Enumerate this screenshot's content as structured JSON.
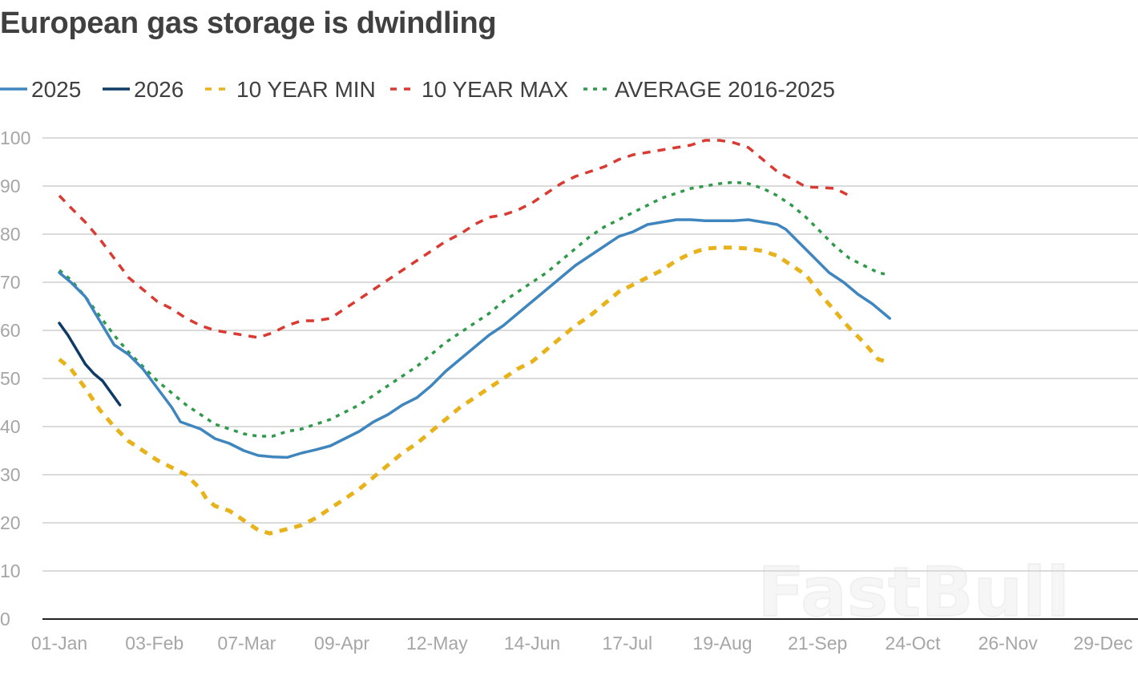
{
  "watermark": "FastBull",
  "chart_data": {
    "type": "line",
    "title": "European gas storage is dwindling",
    "xlabel": "",
    "ylabel": "",
    "ylim": [
      0,
      100
    ],
    "yticks": [
      0,
      10,
      20,
      30,
      40,
      50,
      60,
      70,
      80,
      90,
      100
    ],
    "xlim": [
      1,
      366
    ],
    "xticks": [
      {
        "day": 1,
        "label": "01-Jan"
      },
      {
        "day": 34,
        "label": "03-Feb"
      },
      {
        "day": 66,
        "label": "07-Mar"
      },
      {
        "day": 99,
        "label": "09-Apr"
      },
      {
        "day": 132,
        "label": "12-May"
      },
      {
        "day": 165,
        "label": "14-Jun"
      },
      {
        "day": 198,
        "label": "17-Jul"
      },
      {
        "day": 231,
        "label": "19-Aug"
      },
      {
        "day": 264,
        "label": "21-Sep"
      },
      {
        "day": 297,
        "label": "24-Oct"
      },
      {
        "day": 330,
        "label": "26-Nov"
      },
      {
        "day": 363,
        "label": "29-Dec"
      }
    ],
    "grid": true,
    "legend": "top",
    "series": [
      {
        "name": "2025",
        "color": "#3f86bf",
        "style": "solid",
        "points": [
          [
            1,
            72
          ],
          [
            5,
            70
          ],
          [
            10,
            67
          ],
          [
            15,
            62
          ],
          [
            20,
            57
          ],
          [
            25,
            55
          ],
          [
            30,
            52
          ],
          [
            35,
            48
          ],
          [
            40,
            44
          ],
          [
            43,
            41
          ],
          [
            50,
            39.5
          ],
          [
            55,
            37.5
          ],
          [
            60,
            36.5
          ],
          [
            65,
            35
          ],
          [
            70,
            34
          ],
          [
            75,
            33.7
          ],
          [
            80,
            33.6
          ],
          [
            85,
            34.5
          ],
          [
            90,
            35.2
          ],
          [
            95,
            36
          ],
          [
            100,
            37.5
          ],
          [
            105,
            39
          ],
          [
            110,
            41
          ],
          [
            115,
            42.5
          ],
          [
            120,
            44.5
          ],
          [
            125,
            46
          ],
          [
            130,
            48.5
          ],
          [
            135,
            51.5
          ],
          [
            140,
            54
          ],
          [
            145,
            56.5
          ],
          [
            150,
            59
          ],
          [
            155,
            61
          ],
          [
            160,
            63.5
          ],
          [
            165,
            66
          ],
          [
            170,
            68.5
          ],
          [
            175,
            71
          ],
          [
            180,
            73.5
          ],
          [
            185,
            75.5
          ],
          [
            190,
            77.5
          ],
          [
            195,
            79.5
          ],
          [
            200,
            80.5
          ],
          [
            205,
            82
          ],
          [
            210,
            82.5
          ],
          [
            215,
            83
          ],
          [
            220,
            83
          ],
          [
            225,
            82.8
          ],
          [
            230,
            82.8
          ],
          [
            235,
            82.8
          ],
          [
            240,
            83
          ],
          [
            245,
            82.5
          ],
          [
            250,
            82
          ],
          [
            253,
            81
          ],
          [
            258,
            78
          ],
          [
            263,
            75
          ],
          [
            268,
            72
          ],
          [
            273,
            70
          ],
          [
            278,
            67.5
          ],
          [
            283,
            65.5
          ],
          [
            286,
            64
          ],
          [
            289,
            62.5
          ]
        ]
      },
      {
        "name": "2026",
        "color": "#0e3a66",
        "style": "solid",
        "points": [
          [
            1,
            61.5
          ],
          [
            4,
            59
          ],
          [
            7,
            56
          ],
          [
            10,
            53
          ],
          [
            13,
            51
          ],
          [
            16,
            49.5
          ],
          [
            19,
            47
          ],
          [
            22,
            44.5
          ]
        ]
      },
      {
        "name": "10 YEAR MIN",
        "color": "#e8b21a",
        "style": "dashed",
        "points": [
          [
            1,
            54
          ],
          [
            5,
            52
          ],
          [
            10,
            48
          ],
          [
            15,
            43.5
          ],
          [
            20,
            40
          ],
          [
            25,
            37
          ],
          [
            30,
            35
          ],
          [
            35,
            33
          ],
          [
            40,
            31.5
          ],
          [
            45,
            30
          ],
          [
            50,
            27
          ],
          [
            52,
            25
          ],
          [
            55,
            23.5
          ],
          [
            60,
            22.5
          ],
          [
            65,
            20.5
          ],
          [
            70,
            18.5
          ],
          [
            74,
            17.8
          ],
          [
            80,
            18.7
          ],
          [
            85,
            19.5
          ],
          [
            90,
            21
          ],
          [
            95,
            23
          ],
          [
            100,
            25
          ],
          [
            105,
            27
          ],
          [
            110,
            29.5
          ],
          [
            115,
            32
          ],
          [
            120,
            34.5
          ],
          [
            125,
            36.5
          ],
          [
            130,
            39
          ],
          [
            135,
            41.5
          ],
          [
            140,
            44
          ],
          [
            145,
            46
          ],
          [
            150,
            48
          ],
          [
            155,
            50
          ],
          [
            160,
            52
          ],
          [
            165,
            53.5
          ],
          [
            170,
            56
          ],
          [
            175,
            58.5
          ],
          [
            180,
            61
          ],
          [
            185,
            63
          ],
          [
            190,
            65.5
          ],
          [
            195,
            68
          ],
          [
            200,
            69.5
          ],
          [
            205,
            71
          ],
          [
            210,
            72.5
          ],
          [
            215,
            74.5
          ],
          [
            220,
            76
          ],
          [
            225,
            77
          ],
          [
            230,
            77.2
          ],
          [
            235,
            77.2
          ],
          [
            240,
            77
          ],
          [
            245,
            76.5
          ],
          [
            250,
            75.5
          ],
          [
            255,
            73.5
          ],
          [
            260,
            71.5
          ],
          [
            265,
            67.5
          ],
          [
            270,
            64
          ],
          [
            275,
            60.5
          ],
          [
            280,
            57.5
          ],
          [
            285,
            54
          ],
          [
            289,
            53.3
          ]
        ]
      },
      {
        "name": "10 YEAR MAX",
        "color": "#d93a32",
        "style": "dashed",
        "points": [
          [
            1,
            88
          ],
          [
            5,
            85.5
          ],
          [
            10,
            82.5
          ],
          [
            15,
            79
          ],
          [
            20,
            75
          ],
          [
            25,
            71
          ],
          [
            30,
            68.5
          ],
          [
            35,
            66
          ],
          [
            40,
            64.5
          ],
          [
            45,
            62.5
          ],
          [
            50,
            61
          ],
          [
            55,
            60
          ],
          [
            60,
            59.5
          ],
          [
            65,
            59
          ],
          [
            70,
            58.5
          ],
          [
            75,
            59.5
          ],
          [
            80,
            61
          ],
          [
            85,
            62
          ],
          [
            90,
            62
          ],
          [
            95,
            62.5
          ],
          [
            100,
            64.5
          ],
          [
            105,
            66.5
          ],
          [
            110,
            68.5
          ],
          [
            115,
            70.5
          ],
          [
            120,
            72.5
          ],
          [
            125,
            74.5
          ],
          [
            130,
            76.5
          ],
          [
            135,
            78.5
          ],
          [
            140,
            80
          ],
          [
            145,
            82
          ],
          [
            150,
            83.5
          ],
          [
            155,
            84
          ],
          [
            160,
            85
          ],
          [
            165,
            86.5
          ],
          [
            170,
            88.5
          ],
          [
            175,
            90.5
          ],
          [
            180,
            92
          ],
          [
            185,
            93
          ],
          [
            190,
            94
          ],
          [
            195,
            95.5
          ],
          [
            200,
            96.5
          ],
          [
            205,
            97
          ],
          [
            210,
            97.5
          ],
          [
            215,
            98
          ],
          [
            220,
            98.5
          ],
          [
            225,
            99.5
          ],
          [
            230,
            99.5
          ],
          [
            235,
            99
          ],
          [
            240,
            98
          ],
          [
            245,
            95.5
          ],
          [
            250,
            93
          ],
          [
            255,
            91.5
          ],
          [
            260,
            89.8
          ],
          [
            265,
            89.7
          ],
          [
            270,
            89.5
          ],
          [
            275,
            88
          ]
        ]
      },
      {
        "name": "AVERAGE 2016-2025",
        "color": "#2f9a4a",
        "style": "dotted",
        "points": [
          [
            1,
            72.5
          ],
          [
            5,
            70.5
          ],
          [
            10,
            67
          ],
          [
            15,
            63
          ],
          [
            20,
            59
          ],
          [
            25,
            55.5
          ],
          [
            30,
            52.5
          ],
          [
            35,
            49.5
          ],
          [
            40,
            47
          ],
          [
            45,
            44.5
          ],
          [
            50,
            42.5
          ],
          [
            55,
            40.5
          ],
          [
            60,
            39.5
          ],
          [
            65,
            38.5
          ],
          [
            70,
            38
          ],
          [
            75,
            38
          ],
          [
            80,
            39
          ],
          [
            85,
            39.5
          ],
          [
            90,
            40.5
          ],
          [
            95,
            41.5
          ],
          [
            100,
            43
          ],
          [
            105,
            44.5
          ],
          [
            110,
            46.5
          ],
          [
            115,
            48.5
          ],
          [
            120,
            50.5
          ],
          [
            125,
            52.5
          ],
          [
            130,
            55
          ],
          [
            135,
            57.5
          ],
          [
            140,
            59.5
          ],
          [
            145,
            61.5
          ],
          [
            150,
            63.5
          ],
          [
            155,
            66
          ],
          [
            160,
            68
          ],
          [
            165,
            70
          ],
          [
            170,
            72
          ],
          [
            175,
            74.5
          ],
          [
            180,
            77
          ],
          [
            185,
            79.5
          ],
          [
            190,
            81.5
          ],
          [
            195,
            83
          ],
          [
            200,
            84.5
          ],
          [
            205,
            86
          ],
          [
            210,
            87.5
          ],
          [
            215,
            88.5
          ],
          [
            220,
            89.5
          ],
          [
            225,
            90
          ],
          [
            230,
            90.5
          ],
          [
            235,
            90.8
          ],
          [
            240,
            90.5
          ],
          [
            245,
            89.5
          ],
          [
            250,
            88
          ],
          [
            255,
            86
          ],
          [
            260,
            83.5
          ],
          [
            265,
            80.5
          ],
          [
            270,
            77.5
          ],
          [
            275,
            75
          ],
          [
            280,
            73.5
          ],
          [
            285,
            72
          ],
          [
            289,
            71.5
          ]
        ]
      }
    ]
  }
}
